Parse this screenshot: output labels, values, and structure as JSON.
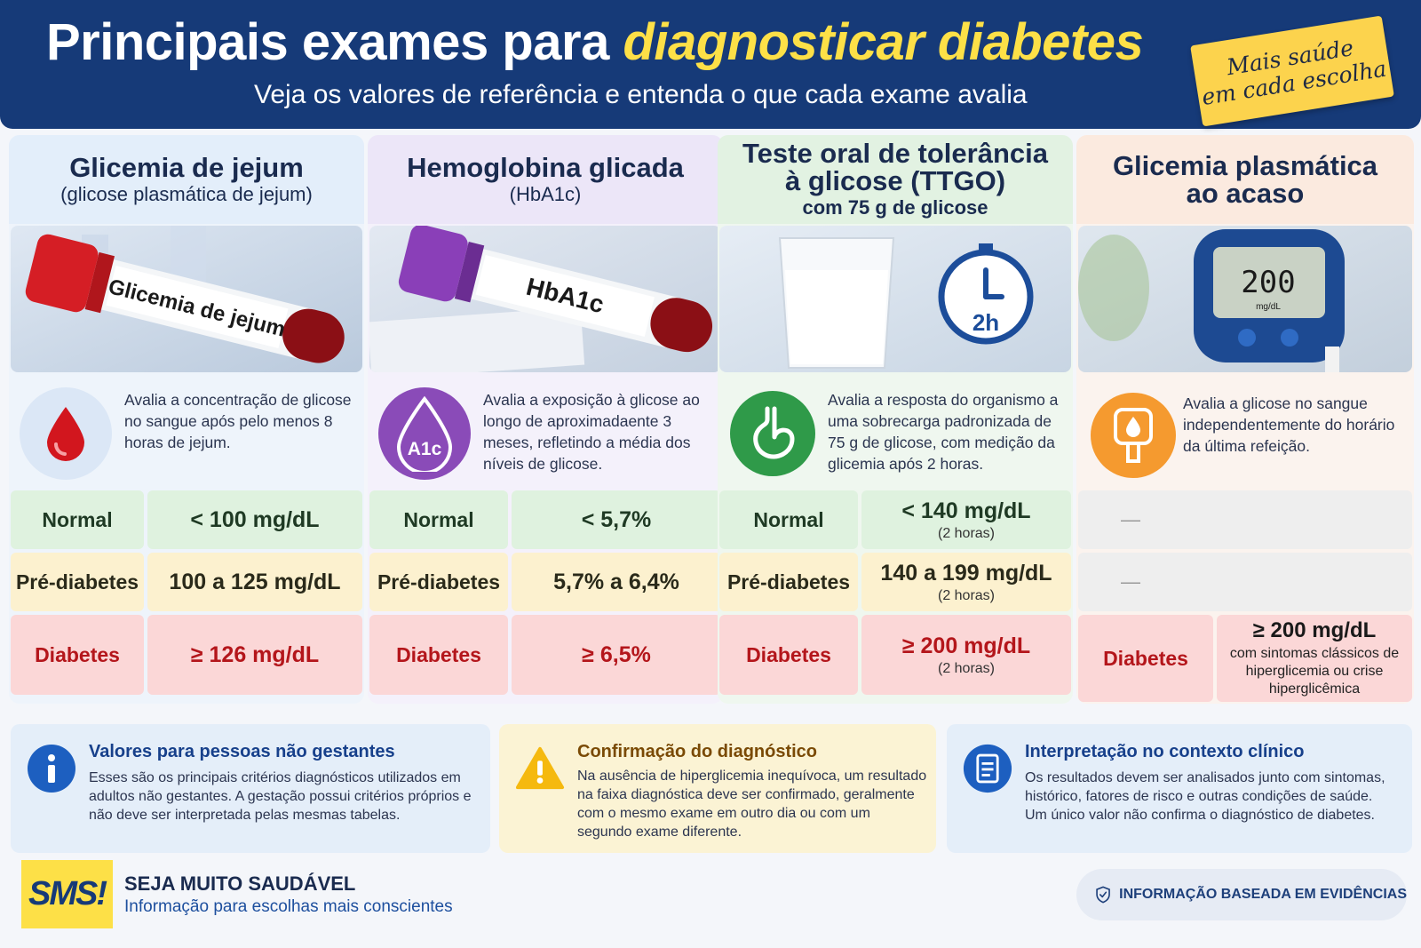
{
  "header": {
    "title_white": "Principais exames para ",
    "title_highlight": "diagnosticar diabetes",
    "subtitle": "Veja os valores de referência e entenda o que cada exame avalia",
    "badge_line1": "Mais saúde",
    "badge_line2": "em cada escolha"
  },
  "colors": {
    "header_bg": "#163a78",
    "highlight": "#fde047",
    "normal": "#dff2df",
    "prediabetes": "#fcf1cf",
    "diabetes": "#fbd7d7"
  },
  "columns": [
    {
      "title": "Glicemia de jejum",
      "subtitle": "(glicose plasmática de jejum)",
      "tube_label": "Glicemia de jejum",
      "icon": "blood-drop-icon",
      "description": "Avalia a concentração de glicose no sangue após pelo menos 8 horas de jejum.",
      "rows": [
        {
          "label": "Normal",
          "value": "< 100 mg/dL",
          "note": ""
        },
        {
          "label": "Pré-diabetes",
          "value": "100 a 125 mg/dL",
          "note": ""
        },
        {
          "label": "Diabetes",
          "value": "≥ 126 mg/dL",
          "note": ""
        }
      ]
    },
    {
      "title": "Hemoglobina glicada",
      "subtitle": "(HbA1c)",
      "tube_label": "HbA1c",
      "icon_text": "A1c",
      "description": "Avalia a exposição à glicose ao longo de aproximadaente 3 meses, refletindo a média dos níveis de glicose.",
      "rows": [
        {
          "label": "Normal",
          "value": "< 5,7%",
          "note": ""
        },
        {
          "label": "Pré-diabetes",
          "value": "5,7% a 6,4%",
          "note": ""
        },
        {
          "label": "Diabetes",
          "value": "≥ 6,5%",
          "note": ""
        }
      ]
    },
    {
      "title": "Teste oral de tolerância\nà glicose (TTGO)",
      "subtitle": "com 75 g de glicose",
      "timer_label": "2h",
      "icon": "stomach-icon",
      "description": "Avalia a resposta do organismo a uma sobrecarga padronizada de 75 g de glicose, com medição da glicemia após 2 horas.",
      "rows": [
        {
          "label": "Normal",
          "value": "< 140 mg/dL",
          "note": "(2 horas)"
        },
        {
          "label": "Pré-diabetes",
          "value": "140 a 199 mg/dL",
          "note": "(2 horas)"
        },
        {
          "label": "Diabetes",
          "value": "≥ 200 mg/dL",
          "note": "(2 horas)"
        }
      ]
    },
    {
      "title": "Glicemia plasmática\nao acaso",
      "meter_value": "200",
      "meter_unit": "mg/dL",
      "icon": "glucose-meter-icon",
      "description": "Avalia a glicose no sangue independentemente do horário da última refeição.",
      "dash": "—",
      "diabetes_label": "Diabetes",
      "diabetes_value": "≥ 200 mg/dL",
      "diabetes_note": "com sintomas clássicos de hiperglicemia ou crise hiperglicêmica"
    }
  ],
  "info": [
    {
      "title": "Valores para pessoas não gestantes",
      "text": "Esses são os principais critérios diagnósticos utilizados em adultos não gestantes. A gestação possui critérios próprios e não deve ser interpretada pelas mesmas tabelas.",
      "icon": "info-icon"
    },
    {
      "title": "Confirmação do diagnóstico",
      "text": "Na ausência de hiperglicemia inequívoca, um resultado na faixa diagnóstica deve ser confirmado, geralmente com o mesmo exame em outro dia ou com um segundo exame diferente.",
      "icon": "warning-icon"
    },
    {
      "title": "Interpretação no contexto clínico",
      "text": "Os resultados devem ser analisados junto com sintomas, histórico, fatores de risco e outras condições de saúde. Um único valor não confirma o diagnóstico de diabetes.",
      "icon": "document-icon"
    }
  ],
  "footer": {
    "logo": "SMS!",
    "brand": "SEJA MUITO SAUDÁVEL",
    "tagline": "Informação para escolhas mais conscientes",
    "evidence": "INFORMAÇÃO BASEADA EM EVIDÊNCIAS"
  }
}
